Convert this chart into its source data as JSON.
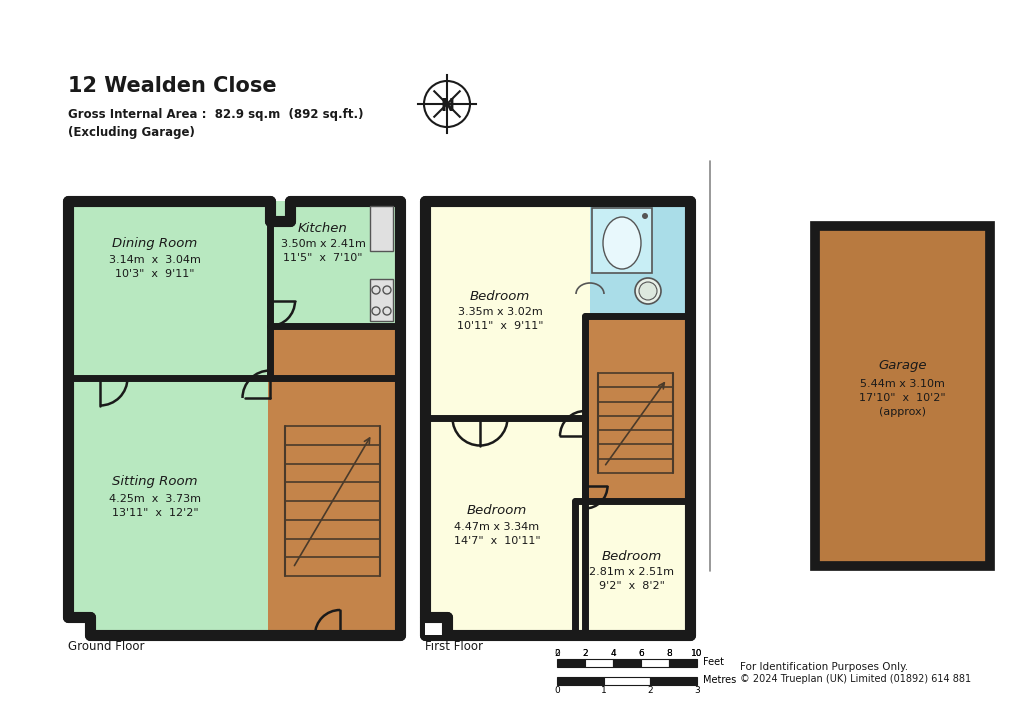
{
  "title": "12 Wealden Close",
  "subtitle_line1": "Gross Internal Area :  82.9 sq.m  (892 sq.ft.)",
  "subtitle_line2": "(Excluding Garage)",
  "bg_color": "#ffffff",
  "wall_color": "#1a1a1a",
  "ground_floor_color": "#b8e8c0",
  "first_floor_color": "#fdfde0",
  "hallway_color": "#c4844a",
  "bathroom_color": "#aadde8",
  "garage_color": "#b87a40",
  "ground_floor_label": "Ground Floor",
  "first_floor_label": "First Floor",
  "rooms": {
    "dining_room": {
      "label": "Dining Room",
      "dim1": "3.14m  x  3.04m",
      "dim2": "10'3\"  x  9'11\""
    },
    "kitchen": {
      "label": "Kitchen",
      "dim1": "3.50m x 2.41m",
      "dim2": "11'5\"  x  7'10\""
    },
    "sitting_room": {
      "label": "Sitting Room",
      "dim1": "4.25m  x  3.73m",
      "dim2": "13'11\"  x  12'2\""
    },
    "bedroom1": {
      "label": "Bedroom",
      "dim1": "3.35m x 3.02m",
      "dim2": "10'11\"  x  9'11\""
    },
    "bedroom2": {
      "label": "Bedroom",
      "dim1": "4.47m x 3.34m",
      "dim2": "14'7\"  x  10'11\""
    },
    "bedroom3": {
      "label": "Bedroom",
      "dim1": "2.81m x 2.51m",
      "dim2": "9'2\"  x  8'2\""
    },
    "garage": {
      "label": "Garage",
      "dim1": "5.44m x 3.10m",
      "dim2": "17'10\"  x  10'2\"",
      "dim3": "(approx)"
    }
  },
  "footer": "For Identification Purposes Only.© 2024 Trueplan (UK) Limited (01892) 614 881"
}
